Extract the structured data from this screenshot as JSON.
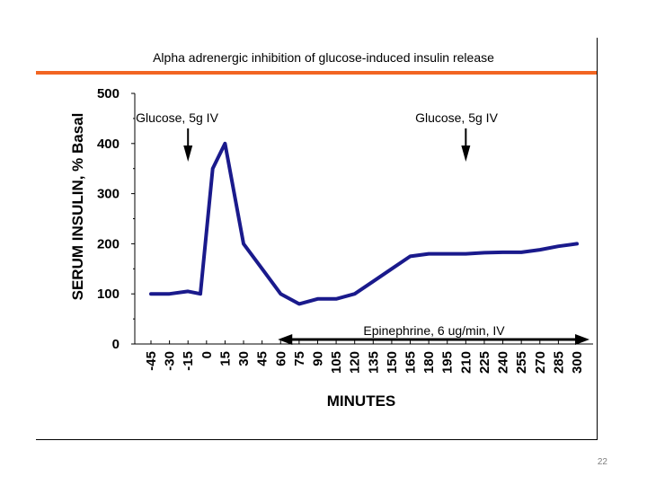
{
  "slide": {
    "title": "Alpha adrenergic inhibition of glucose-induced insulin release",
    "page_number": "22"
  },
  "colors": {
    "accent_rule": "#f26522",
    "series_line": "#1a1a8c"
  },
  "chart_data": {
    "type": "line",
    "title": "Alpha adrenergic inhibition of glucose-induced insulin release",
    "xlabel": "MINUTES",
    "ylabel": "SERUM INSULIN, % Basal",
    "categories": [
      "-45",
      "-30",
      "-15",
      "0",
      "15",
      "30",
      "45",
      "60",
      "75",
      "90",
      "105",
      "120",
      "135",
      "150",
      "165",
      "180",
      "195",
      "210",
      "225",
      "240",
      "255",
      "270",
      "285",
      "300"
    ],
    "yticks": [
      0,
      100,
      200,
      300,
      400,
      500
    ],
    "ylim": [
      0,
      500
    ],
    "grid": false,
    "legend": "none",
    "series": [
      {
        "x": [
          -45,
          -30,
          -15,
          -5,
          5,
          15,
          30,
          45,
          60,
          75,
          90,
          105,
          120,
          135,
          150,
          165,
          180,
          195,
          210,
          225,
          240,
          255,
          270,
          285,
          300
        ],
        "y": [
          100,
          100,
          105,
          100,
          350,
          400,
          200,
          150,
          100,
          80,
          90,
          90,
          100,
          125,
          150,
          175,
          180,
          180,
          180,
          182,
          183,
          183,
          188,
          195,
          200
        ]
      }
    ],
    "annotations": {
      "glucose_1": {
        "text": "Glucose, 5g IV",
        "x": -15
      },
      "glucose_2": {
        "text": "Glucose, 5g IV",
        "x": 210
      },
      "epinephrine": {
        "text": "Epinephrine, 6 ug/min, IV",
        "x_start": 60,
        "x_end": 300
      }
    }
  }
}
